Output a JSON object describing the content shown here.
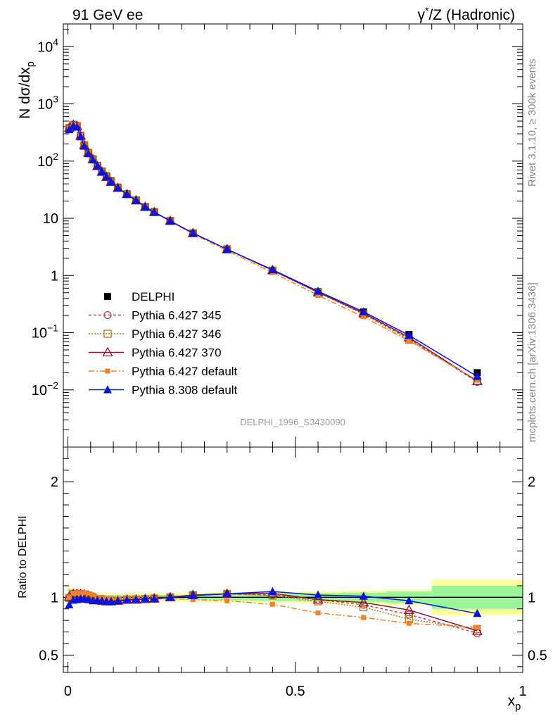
{
  "header": {
    "left_title": "91 GeV ee",
    "right_title": "γ*/Z (Hadronic)"
  },
  "side_labels": {
    "rivet": "Rivet 3.1.10, ≥ 300k events",
    "mcplots": "mcplots.cern.ch [arXiv:1306.3436]"
  },
  "analysis_id": "DELPHI_1996_S3430090",
  "chart_data": [
    {
      "type": "line",
      "panel": "main",
      "scale": "log",
      "ylabel": "N dσ/dx_p",
      "ylim": [
        0.001,
        25000
      ],
      "xlim": [
        -0.01,
        1.0
      ],
      "y_ticks": [
        {
          "value": 0.01,
          "label": "10^-2"
        },
        {
          "value": 0.1,
          "label": "10^-1"
        },
        {
          "value": 1,
          "label": "1"
        },
        {
          "value": 10,
          "label": "10"
        },
        {
          "value": 100,
          "label": "10^2"
        },
        {
          "value": 1000,
          "label": "10^3"
        },
        {
          "value": 10000,
          "label": "10^4"
        }
      ],
      "x": [
        0.003,
        0.012,
        0.02,
        0.028,
        0.036,
        0.045,
        0.055,
        0.065,
        0.075,
        0.085,
        0.095,
        0.11,
        0.13,
        0.15,
        0.17,
        0.19,
        0.225,
        0.275,
        0.35,
        0.45,
        0.55,
        0.65,
        0.75,
        0.9
      ],
      "series": [
        {
          "name": "DELPHI",
          "role": "data",
          "color": "#000000",
          "marker": "square-filled",
          "values": [
            380,
            420,
            400,
            270,
            185,
            138,
            108,
            84,
            67,
            55,
            45,
            35,
            27,
            21,
            16,
            13,
            9.0,
            5.4,
            2.8,
            1.2,
            0.52,
            0.23,
            0.093,
            0.02
          ]
        },
        {
          "name": "Pythia 6.427 345",
          "color": "#b04050",
          "marker": "circle-open",
          "dash": "4,3",
          "values": [
            378,
            432,
            412,
            278,
            190,
            140,
            108,
            82,
            65,
            53,
            43.5,
            34,
            26.5,
            20.6,
            15.8,
            12.9,
            9.0,
            5.5,
            2.88,
            1.23,
            0.51,
            0.215,
            0.079,
            0.0138
          ]
        },
        {
          "name": "Pythia 6.427 346",
          "color": "#b07820",
          "marker": "square-open",
          "dash": "2,2",
          "values": [
            378,
            432,
            412,
            278,
            190,
            140,
            108,
            82,
            65,
            53,
            43.5,
            34,
            26.5,
            20.6,
            15.8,
            12.9,
            9.0,
            5.5,
            2.88,
            1.22,
            0.5,
            0.21,
            0.075,
            0.0145
          ]
        },
        {
          "name": "Pythia 6.427 370",
          "color": "#8b1a2a",
          "marker": "triangle-open",
          "dash": "",
          "values": [
            382,
            432,
            412,
            278,
            190,
            140,
            108,
            82,
            65,
            53,
            43.5,
            34,
            26.5,
            20.6,
            15.8,
            12.9,
            9.0,
            5.5,
            2.88,
            1.24,
            0.51,
            0.22,
            0.083,
            0.0142
          ]
        },
        {
          "name": "Pythia 6.427 default",
          "color": "#f0802a",
          "marker": "square-filled-small",
          "dash": "8,3,2,3",
          "values": [
            380,
            435,
            415,
            280,
            192,
            142,
            110,
            84,
            67,
            54,
            44.5,
            34.5,
            26.8,
            20.9,
            15.9,
            12.9,
            8.9,
            5.3,
            2.72,
            1.13,
            0.45,
            0.19,
            0.072,
            0.0148
          ]
        },
        {
          "name": "Pythia 8.308 default",
          "color": "#0a14d8",
          "marker": "triangle-filled",
          "dash": "",
          "values": [
            355,
            410,
            392,
            266,
            182,
            135,
            105,
            82,
            65,
            53,
            43.5,
            34,
            26.3,
            20.6,
            15.8,
            12.8,
            9.0,
            5.5,
            2.88,
            1.26,
            0.53,
            0.232,
            0.09,
            0.0172
          ]
        }
      ]
    },
    {
      "type": "line",
      "panel": "ratio",
      "ylabel": "Ratio to DELPHI",
      "xlabel": "x_p",
      "ylim": [
        0.35,
        2.3
      ],
      "xlim": [
        -0.01,
        1.0
      ],
      "y_ticks": [
        {
          "value": 0.5,
          "label": "0.5"
        },
        {
          "value": 1,
          "label": "1"
        },
        {
          "value": 2,
          "label": "2"
        }
      ],
      "x_ticks": [
        {
          "value": 0,
          "label": "0"
        },
        {
          "value": 0.5,
          "label": "0.5"
        },
        {
          "value": 1,
          "label": "1"
        }
      ],
      "x": [
        0.003,
        0.012,
        0.02,
        0.028,
        0.036,
        0.045,
        0.055,
        0.065,
        0.075,
        0.085,
        0.095,
        0.11,
        0.13,
        0.15,
        0.17,
        0.19,
        0.225,
        0.275,
        0.35,
        0.45,
        0.55,
        0.65,
        0.75,
        0.9
      ],
      "bands": {
        "edges": [
          0,
          0.006,
          0.016,
          0.024,
          0.032,
          0.04,
          0.05,
          0.06,
          0.07,
          0.08,
          0.09,
          0.1,
          0.12,
          0.14,
          0.16,
          0.18,
          0.2,
          0.25,
          0.3,
          0.4,
          0.5,
          0.6,
          0.7,
          0.8,
          1.0
        ],
        "stat_half_width": [
          0.07,
          0.03,
          0.025,
          0.02,
          0.02,
          0.02,
          0.02,
          0.02,
          0.02,
          0.02,
          0.02,
          0.02,
          0.02,
          0.02,
          0.02,
          0.02,
          0.02,
          0.02,
          0.025,
          0.03,
          0.035,
          0.04,
          0.05,
          0.1
        ],
        "total_half_width": [
          0.1,
          0.06,
          0.05,
          0.04,
          0.04,
          0.04,
          0.035,
          0.035,
          0.035,
          0.035,
          0.035,
          0.035,
          0.035,
          0.035,
          0.035,
          0.035,
          0.035,
          0.035,
          0.04,
          0.045,
          0.05,
          0.06,
          0.07,
          0.15
        ],
        "stat_color": "#99f599",
        "total_color": "#ffff99"
      },
      "series": [
        {
          "name": "Pythia 6.427 345",
          "color": "#b04050",
          "marker": "circle-open",
          "dash": "4,3",
          "values": [
            0.995,
            1.03,
            1.03,
            1.03,
            1.025,
            1.015,
            1.0,
            0.975,
            0.97,
            0.965,
            0.965,
            0.97,
            0.98,
            0.98,
            0.985,
            0.99,
            1.0,
            1.02,
            1.03,
            1.02,
            0.98,
            0.935,
            0.85,
            0.69
          ]
        },
        {
          "name": "Pythia 6.427 346",
          "color": "#b07820",
          "marker": "square-open",
          "dash": "2,2",
          "values": [
            0.995,
            1.03,
            1.03,
            1.03,
            1.025,
            1.015,
            1.0,
            0.975,
            0.97,
            0.965,
            0.965,
            0.97,
            0.98,
            0.98,
            0.985,
            0.99,
            1.0,
            1.02,
            1.03,
            1.015,
            0.965,
            0.915,
            0.81,
            0.725
          ]
        },
        {
          "name": "Pythia 6.427 370",
          "color": "#8b1a2a",
          "marker": "triangle-open",
          "dash": "",
          "values": [
            1.005,
            1.03,
            1.03,
            1.03,
            1.025,
            1.015,
            1.0,
            0.975,
            0.97,
            0.965,
            0.965,
            0.97,
            0.98,
            0.98,
            0.985,
            0.99,
            1.0,
            1.02,
            1.03,
            1.035,
            0.98,
            0.955,
            0.89,
            0.71
          ]
        },
        {
          "name": "Pythia 6.427 default",
          "color": "#f0802a",
          "marker": "square-filled-small",
          "dash": "8,3,2,3",
          "values": [
            1.0,
            1.035,
            1.04,
            1.04,
            1.04,
            1.03,
            1.02,
            1.0,
            1.0,
            0.99,
            0.99,
            0.985,
            0.99,
            0.995,
            0.995,
            0.99,
            0.99,
            0.98,
            0.97,
            0.94,
            0.865,
            0.825,
            0.775,
            0.74
          ]
        },
        {
          "name": "Pythia 8.308 default",
          "color": "#0a14d8",
          "marker": "triangle-filled",
          "dash": "",
          "values": [
            0.935,
            0.975,
            0.98,
            0.985,
            0.985,
            0.98,
            0.97,
            0.975,
            0.97,
            0.965,
            0.965,
            0.97,
            0.975,
            0.98,
            0.99,
            0.985,
            1.0,
            1.015,
            1.03,
            1.05,
            1.02,
            1.01,
            0.97,
            0.86
          ]
        }
      ]
    }
  ],
  "legend": {
    "entries": [
      "DELPHI",
      "Pythia 6.427 345",
      "Pythia 6.427 346",
      "Pythia 6.427 370",
      "Pythia 6.427 default",
      "Pythia 8.308 default"
    ]
  }
}
